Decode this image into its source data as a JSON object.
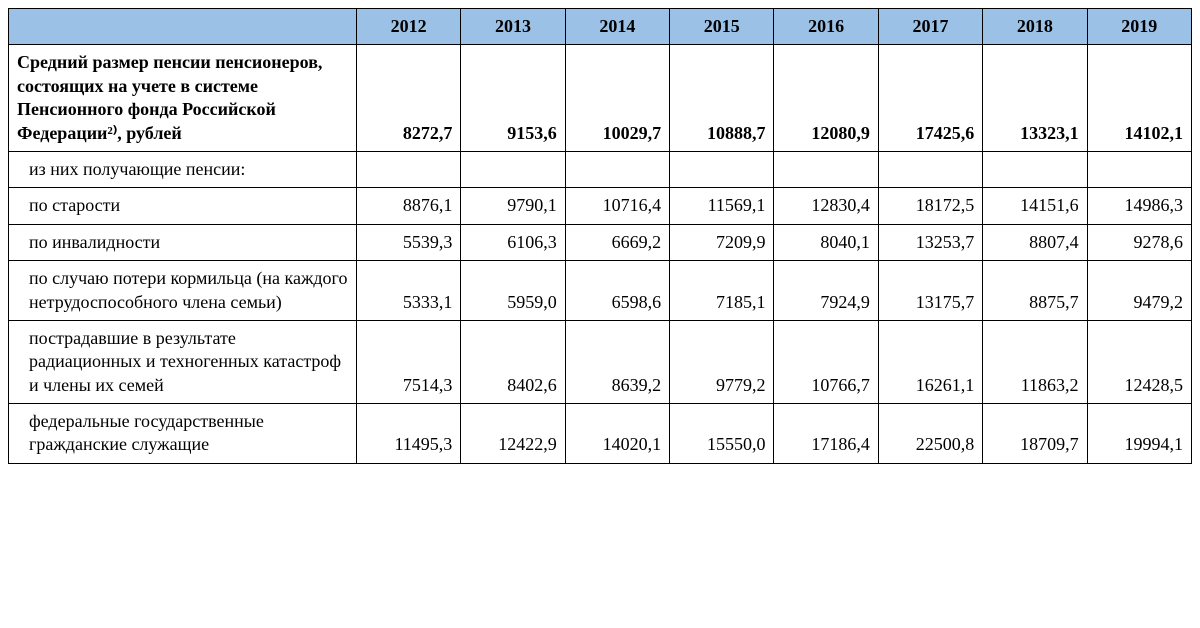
{
  "table": {
    "type": "table",
    "header_bg": "#9bc2e6",
    "border_color": "#000000",
    "font_family": "Times New Roman",
    "header_fontsize": 18,
    "cell_fontsize": 18,
    "columns": [
      "",
      "2012",
      "2013",
      "2014",
      "2015",
      "2016",
      "2017",
      "2018",
      "2019"
    ],
    "rows": [
      {
        "label": "Средний размер пенсии пенсионеров, состоящих на учете в системе Пенсионного фонда Российской Федерации²⁾, рублей",
        "bold": true,
        "indent": false,
        "values": [
          "8272,7",
          "9153,6",
          "10029,7",
          "10888,7",
          "12080,9",
          "17425,6",
          "13323,1",
          "14102,1"
        ]
      },
      {
        "label": "из них получающие пенсии:",
        "bold": false,
        "indent": true,
        "values": [
          "",
          "",
          "",
          "",
          "",
          "",
          "",
          ""
        ]
      },
      {
        "label": "по старости",
        "bold": false,
        "indent": true,
        "values": [
          "8876,1",
          "9790,1",
          "10716,4",
          "11569,1",
          "12830,4",
          "18172,5",
          "14151,6",
          "14986,3"
        ]
      },
      {
        "label": "по инвалидности",
        "bold": false,
        "indent": true,
        "values": [
          "5539,3",
          "6106,3",
          "6669,2",
          "7209,9",
          "8040,1",
          "13253,7",
          "8807,4",
          "9278,6"
        ]
      },
      {
        "label": "по случаю потери кормильца (на каждого нетрудоспособного члена семьи)",
        "bold": false,
        "indent": true,
        "values": [
          "5333,1",
          "5959,0",
          "6598,6",
          "7185,1",
          "7924,9",
          "13175,7",
          "8875,7",
          "9479,2"
        ]
      },
      {
        "label": "пострадавшие в результате радиационных и техногенных катастроф и члены их семей",
        "bold": false,
        "indent": true,
        "values": [
          "7514,3",
          "8402,6",
          "8639,2",
          "9779,2",
          "10766,7",
          "16261,1",
          "11863,2",
          "12428,5"
        ]
      },
      {
        "label": "федеральные государственные гражданские служащие",
        "bold": false,
        "indent": true,
        "values": [
          "11495,3",
          "12422,9",
          "14020,1",
          "15550,0",
          "17186,4",
          "22500,8",
          "18709,7",
          "19994,1"
        ]
      }
    ]
  }
}
